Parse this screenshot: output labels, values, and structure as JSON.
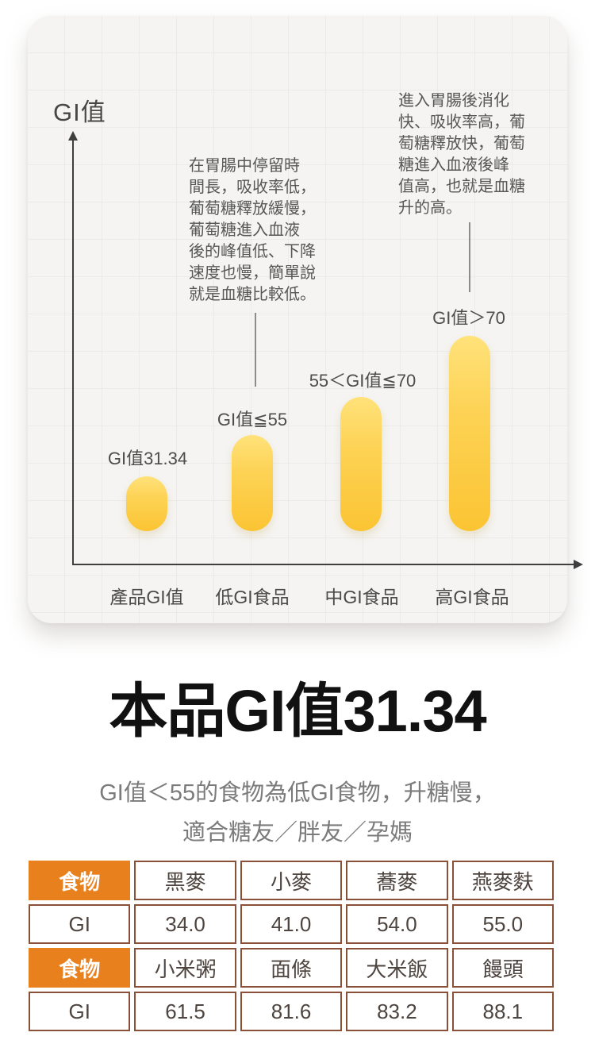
{
  "chart_panel": {
    "axis_title": "GI值",
    "left_note": {
      "lines": [
        "在胃腸中停留時",
        "間長，吸收率低，",
        "葡萄糖釋放緩慢，",
        "葡萄糖進入血液",
        "後的峰值低、下降",
        "速度也慢，簡單說",
        "就是血糖比較低。"
      ]
    },
    "right_note": {
      "lines": [
        "進入胃腸後消化",
        "快、吸收率高，葡",
        "萄糖釋放快，葡萄",
        "糖進入血液後峰",
        "值高，也就是血糖",
        "升的高。"
      ]
    },
    "bars": [
      {
        "annotation": "GI值31.34",
        "category": "產品GI值"
      },
      {
        "annotation": "GI值≦55",
        "category": "低GI食品"
      },
      {
        "annotation": "55＜GI值≦70",
        "category": "中GI食品"
      },
      {
        "annotation": "GI值＞70",
        "category": "高GI食品"
      }
    ],
    "colors": {
      "panel_bg": "#f5f4f2",
      "bar_top": "#ffe27a",
      "bar_bottom": "#fbc433",
      "axis": "#3f3f3f"
    }
  },
  "headline": {
    "title": "本品GI值31.34",
    "subtitle_line1": "GI值＜55的食物為低GI食物，升糖慢，",
    "subtitle_line2": "適合糖友／胖友／孕媽"
  },
  "gi_table": {
    "rows": [
      [
        "食物",
        "黑麥",
        "小麥",
        "蕎麥",
        "燕麥麩"
      ],
      [
        "GI",
        "34.0",
        "41.0",
        "54.0",
        "55.0"
      ],
      [
        "食物",
        "小米粥",
        "面條",
        "大米飯",
        "饅頭"
      ],
      [
        "GI",
        "61.5",
        "81.6",
        "83.2",
        "88.1"
      ]
    ],
    "colors": {
      "header_bg": "#e8811d",
      "border": "#8a5138"
    }
  },
  "chart_data": [
    {
      "type": "bar",
      "title": "GI值",
      "categories": [
        "產品GI值",
        "低GI食品",
        "中GI食品",
        "高GI食品"
      ],
      "values": [
        31.34,
        55,
        78,
        113
      ],
      "bar_annotations": [
        "GI值31.34",
        "GI值≦55",
        "55＜GI值≦70",
        "GI值＞70"
      ],
      "ylabel": "GI值",
      "legend_position": "none",
      "grid": "faint",
      "annotations": [
        "在胃腸中停留時間長，吸收率低，葡萄糖釋放緩慢，葡萄糖進入血液後的峰值低、下降速度也慢，簡單說就是血糖比較低。",
        "進入胃腸後消化快、吸收率高，葡萄糖釋放快，葡萄糖進入血液後峰值高，也就是血糖升的高。"
      ]
    },
    {
      "type": "table",
      "rows": [
        [
          "食物",
          "黑麥",
          "小麥",
          "蕎麥",
          "燕麥麩"
        ],
        [
          "GI",
          "34.0",
          "41.0",
          "54.0",
          "55.0"
        ],
        [
          "食物",
          "小米粥",
          "面條",
          "大米飯",
          "饅頭"
        ],
        [
          "GI",
          "61.5",
          "81.6",
          "83.2",
          "88.1"
        ]
      ]
    }
  ]
}
